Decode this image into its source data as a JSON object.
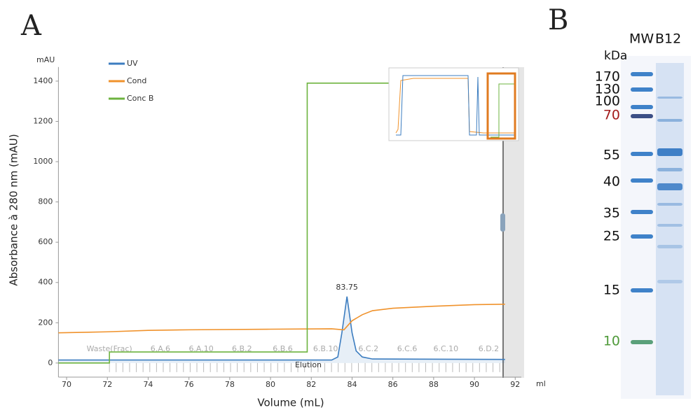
{
  "panel_labels": [
    "A",
    "B"
  ],
  "chart_data": {
    "type": "line",
    "y_label": "Absorbance à 280 nm (mAU)",
    "x_label": "Volume (mL)",
    "y_unit": "mAU",
    "x_unit": "ml",
    "xlim": [
      69.6,
      92.3
    ],
    "ylim": [
      -70,
      1470
    ],
    "xticks": [
      70,
      72,
      74,
      76,
      78,
      80,
      82,
      84,
      86,
      88,
      90,
      92
    ],
    "yticks": [
      0,
      200,
      400,
      600,
      800,
      1000,
      1200,
      1400
    ],
    "series": [
      {
        "name": "UV",
        "color": "#3c7dc0",
        "x": [
          69.6,
          83.0,
          83.3,
          83.5,
          83.75,
          84.0,
          84.2,
          84.5,
          85.0,
          91.5
        ],
        "values": [
          15,
          15,
          30,
          150,
          330,
          150,
          60,
          30,
          20,
          18
        ]
      },
      {
        "name": "Cond",
        "color": "#f0922b",
        "x": [
          69.6,
          72,
          74,
          76,
          80,
          83,
          83.6,
          84,
          84.5,
          85,
          86,
          88,
          90,
          91.5
        ],
        "values": [
          150,
          155,
          162,
          165,
          168,
          170,
          165,
          210,
          240,
          260,
          272,
          282,
          290,
          292
        ]
      },
      {
        "name": "Conc B",
        "color": "#6db33f",
        "x": [
          69.6,
          72.1,
          72.1,
          81.8,
          81.8,
          85.8
        ],
        "values": [
          0,
          0,
          55,
          55,
          1390,
          1390
        ]
      }
    ],
    "peak_label": {
      "text": "83.75",
      "x": 83.75,
      "y": 330
    },
    "fractions": {
      "labels": [
        "Waste(Frac)",
        "6.A.6",
        "6.A.10",
        "6.B.2",
        "6.B.6",
        "6.B.10",
        "6.C.2",
        "6.C.6",
        "6.C.10",
        "6.D.2"
      ],
      "x": [
        72.1,
        74.6,
        76.6,
        78.6,
        80.6,
        82.7,
        84.8,
        86.7,
        88.6,
        90.7
      ]
    },
    "elution_label": "Elution"
  },
  "gel": {
    "lanes": [
      "MW",
      "B12"
    ],
    "unit": "kDa",
    "markers": [
      "170",
      "130",
      "100",
      "70",
      "55",
      "40",
      "35",
      "25",
      "15",
      "10"
    ]
  }
}
